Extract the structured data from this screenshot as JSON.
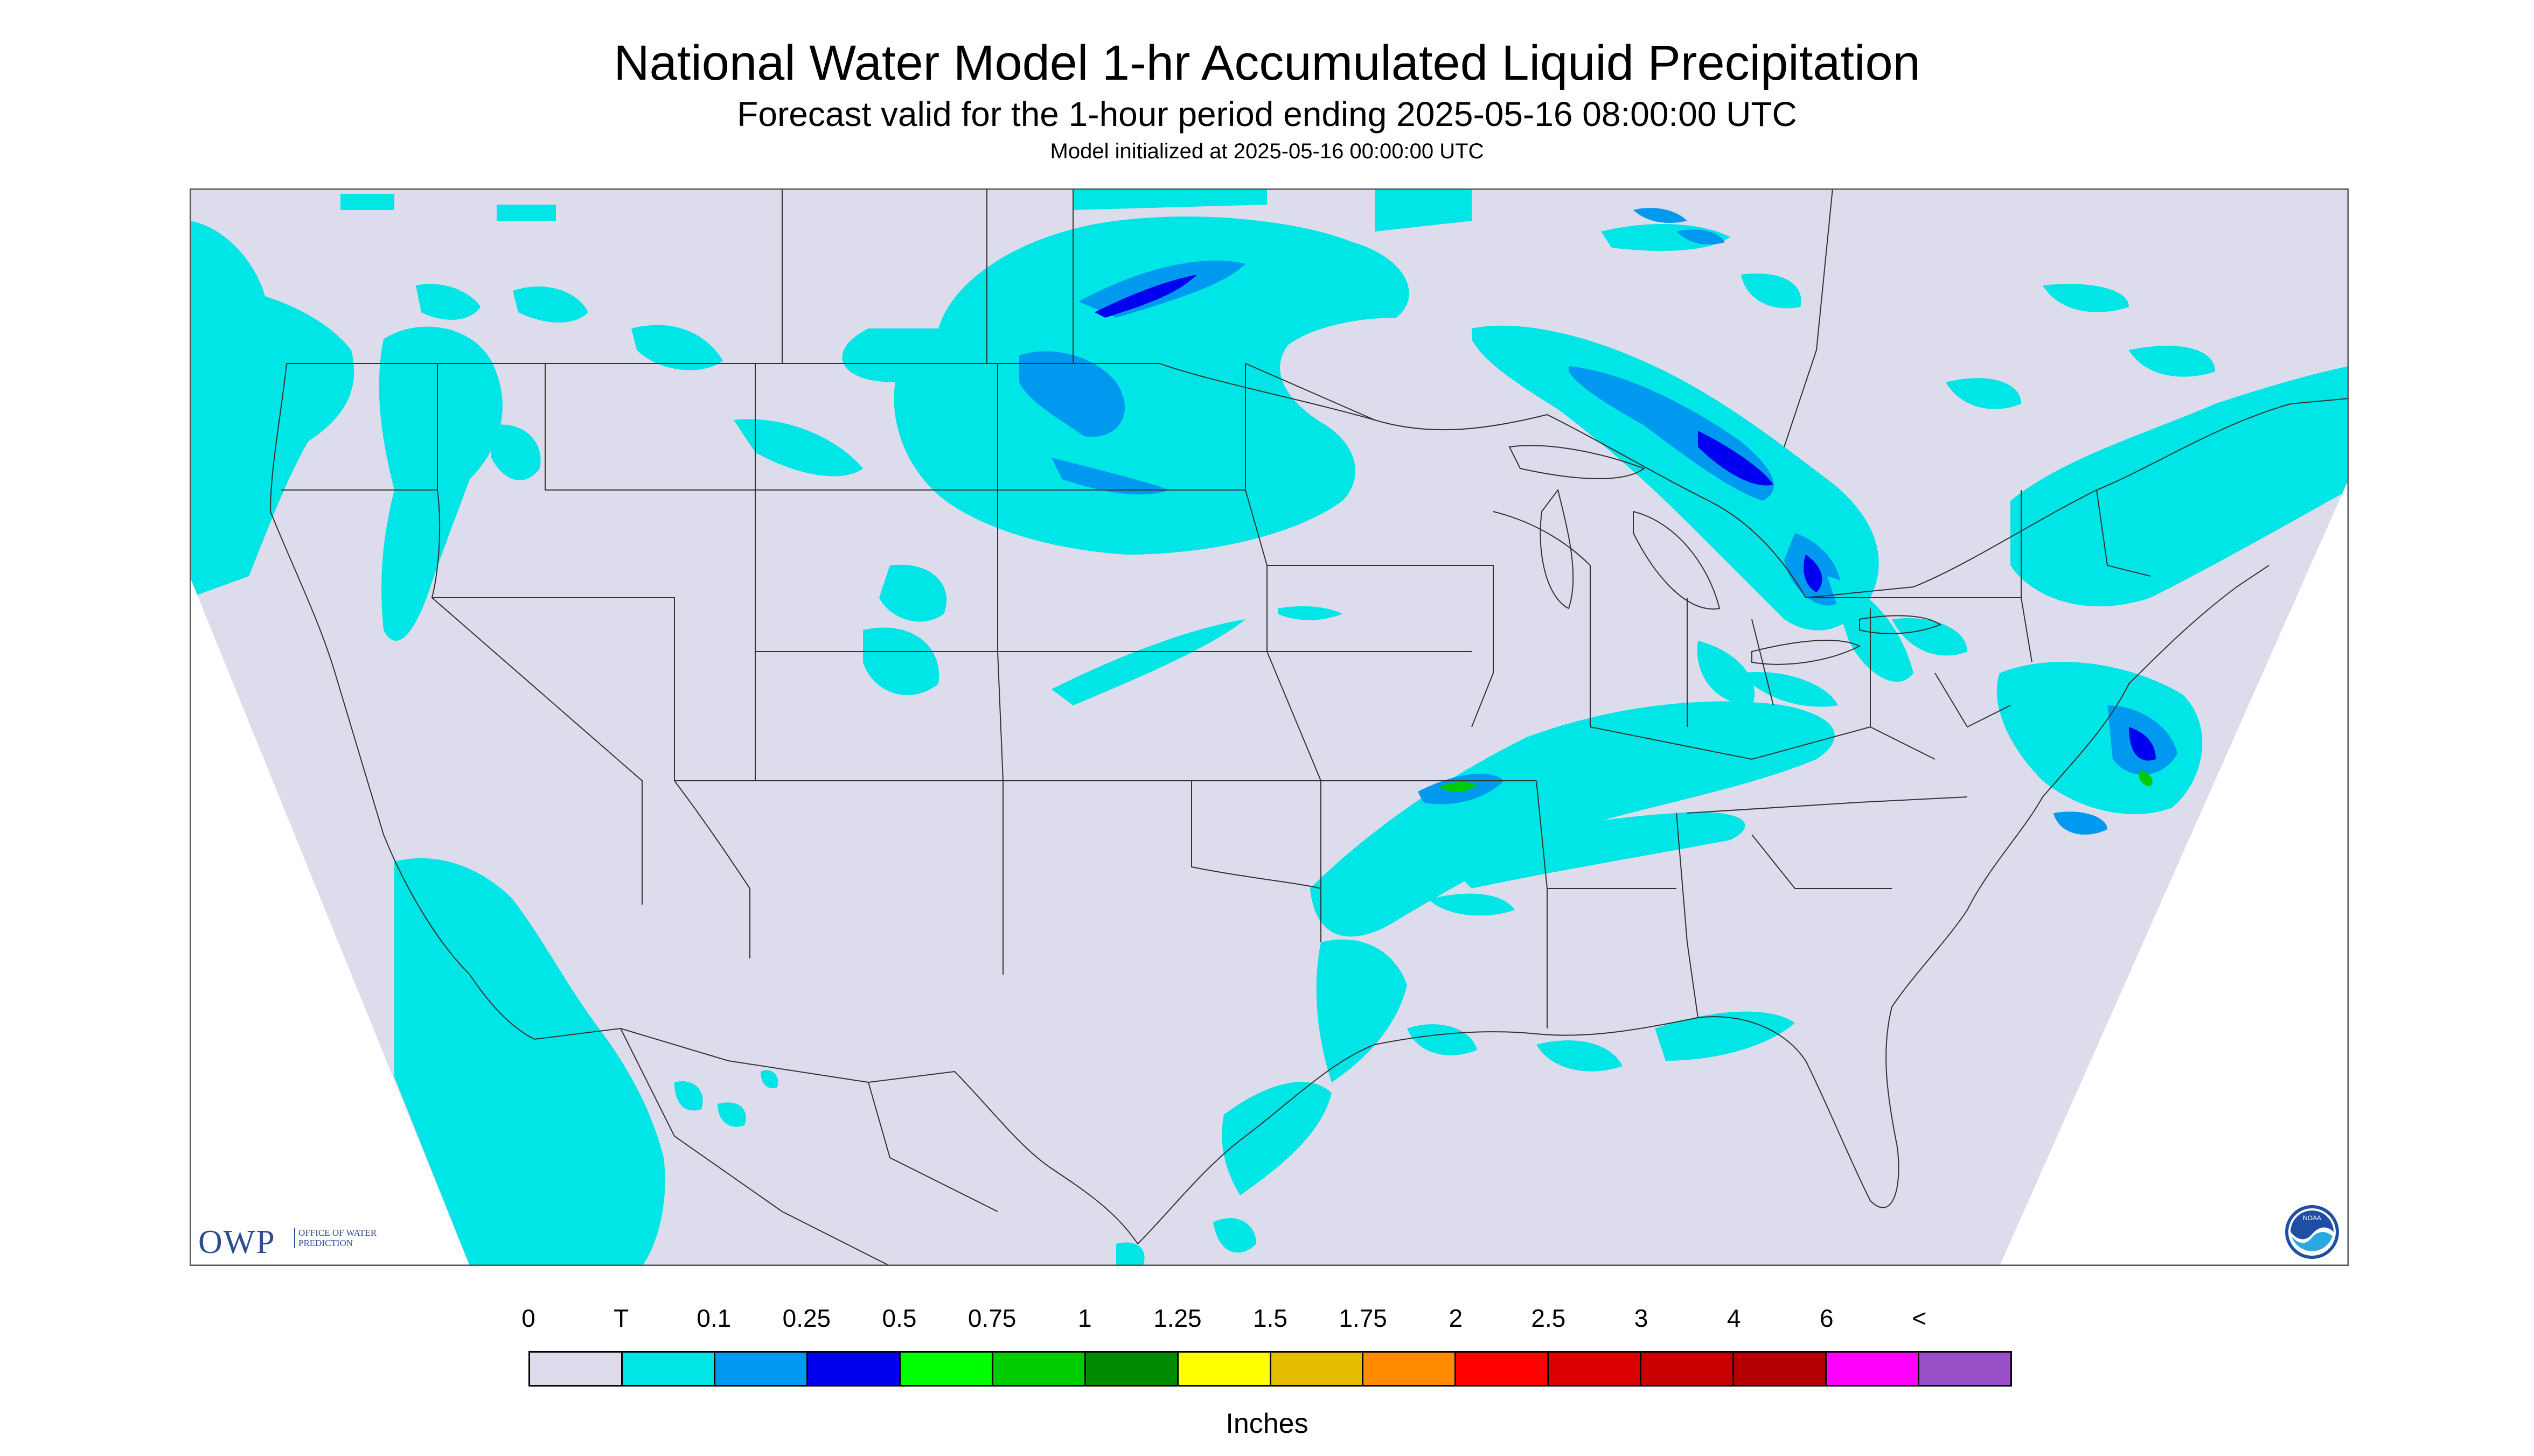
{
  "title": "National Water Model 1-hr Accumulated Liquid Precipitation",
  "subtitle": "Forecast valid for the 1-hour period ending 2025-05-16 08:00:00 UTC",
  "init": "Model initialized at 2025-05-16 00:00:00 UTC",
  "owp_logo": {
    "abbr": "OWP",
    "text": "OFFICE OF WATER PREDICTION"
  },
  "noaa_logo": {
    "text": "NOAA",
    "icon": "noaa-emblem-icon"
  },
  "legend": {
    "labels": [
      "0",
      "T",
      "0.1",
      "0.25",
      "0.5",
      "0.75",
      "1",
      "1.25",
      "1.5",
      "1.75",
      "2",
      "2.5",
      "3",
      "4",
      "6",
      "<"
    ],
    "colors": [
      "#dcdcec",
      "#00e5e5",
      "#0099f0",
      "#0000f0",
      "#00ff00",
      "#00cc00",
      "#008c00",
      "#ffff00",
      "#e5be00",
      "#ff8c00",
      "#ff0000",
      "#dd0000",
      "#c80000",
      "#b40000",
      "#ff00ff",
      "#9a50c8"
    ],
    "units": "Inches"
  },
  "colors": {
    "domain_fill": "#dcdcec",
    "trace": "#00e5e5",
    "light": "#0099f0",
    "moderate": "#0000f0",
    "heavy": "#00cc00",
    "boundary_lines": "#333333",
    "frame": "#555555"
  }
}
